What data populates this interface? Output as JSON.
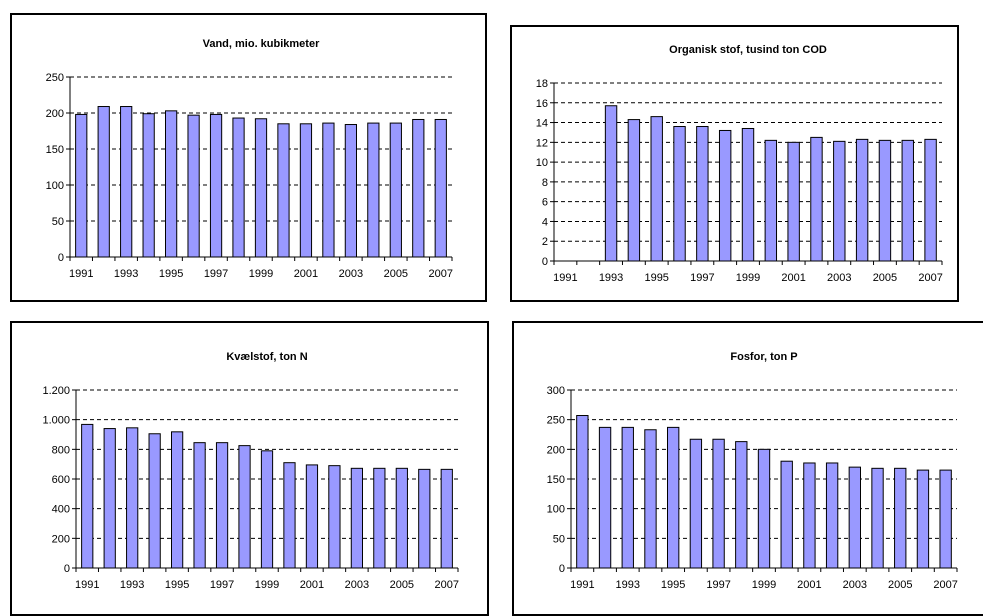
{
  "colors": {
    "bar_fill": "#9999ff",
    "bar_stroke": "#000000",
    "grid": "#000000",
    "background": "#ffffff"
  },
  "chart_data": [
    {
      "type": "bar",
      "title": "Vand, mio. kubikmeter",
      "categories": [
        "1991",
        "1992",
        "1993",
        "1994",
        "1995",
        "1996",
        "1997",
        "1998",
        "1999",
        "2000",
        "2001",
        "2002",
        "2003",
        "2004",
        "2005",
        "2006",
        "2007"
      ],
      "x_tick_labels": [
        "1991",
        "1993",
        "1995",
        "1997",
        "1999",
        "2001",
        "2003",
        "2005",
        "2007"
      ],
      "values": [
        198,
        209,
        209,
        199,
        203,
        197,
        198,
        193,
        192,
        185,
        185,
        186,
        184,
        186,
        186,
        191,
        191
      ],
      "ylim": [
        0,
        250
      ],
      "y_ticks": [
        0,
        50,
        100,
        150,
        200,
        250
      ],
      "y_tick_labels": [
        "0",
        "50",
        "100",
        "150",
        "200",
        "250"
      ],
      "grid": true,
      "grid_style": "dashed"
    },
    {
      "type": "bar",
      "title": "Organisk stof, tusind ton COD",
      "categories": [
        "1991",
        "1992",
        "1993",
        "1994",
        "1995",
        "1996",
        "1997",
        "1998",
        "1999",
        "2000",
        "2001",
        "2002",
        "2003",
        "2004",
        "2005",
        "2006",
        "2007"
      ],
      "x_tick_labels": [
        "1991",
        "1993",
        "1995",
        "1997",
        "1999",
        "2001",
        "2003",
        "2005",
        "2007"
      ],
      "values": [
        null,
        null,
        15.7,
        14.3,
        14.6,
        13.6,
        13.6,
        13.2,
        13.4,
        12.2,
        12.0,
        12.5,
        12.1,
        12.3,
        12.2,
        12.2,
        12.3
      ],
      "ylim": [
        0,
        18
      ],
      "y_ticks": [
        0,
        2,
        4,
        6,
        8,
        10,
        12,
        14,
        16,
        18
      ],
      "y_tick_labels": [
        "0",
        "2",
        "4",
        "6",
        "8",
        "10",
        "12",
        "14",
        "16",
        "18"
      ],
      "grid": true,
      "grid_style": "dashed"
    },
    {
      "type": "bar",
      "title": "Kvælstof, ton N",
      "categories": [
        "1991",
        "1992",
        "1993",
        "1994",
        "1995",
        "1996",
        "1997",
        "1998",
        "1999",
        "2000",
        "2001",
        "2002",
        "2003",
        "2004",
        "2005",
        "2006",
        "2007"
      ],
      "x_tick_labels": [
        "1991",
        "1993",
        "1995",
        "1997",
        "1999",
        "2001",
        "2003",
        "2005",
        "2007"
      ],
      "values": [
        968,
        940,
        945,
        905,
        918,
        845,
        845,
        825,
        790,
        710,
        695,
        690,
        672,
        672,
        672,
        665,
        665
      ],
      "ylim": [
        0,
        1200
      ],
      "y_ticks": [
        0,
        200,
        400,
        600,
        800,
        1000,
        1200
      ],
      "y_tick_labels": [
        "0",
        "200",
        "400",
        "600",
        "800",
        "1.000",
        "1.200"
      ],
      "grid": true,
      "grid_style": "dashed"
    },
    {
      "type": "bar",
      "title": "Fosfor, ton P",
      "categories": [
        "1991",
        "1992",
        "1993",
        "1994",
        "1995",
        "1996",
        "1997",
        "1998",
        "1999",
        "2000",
        "2001",
        "2002",
        "2003",
        "2004",
        "2005",
        "2006",
        "2007"
      ],
      "x_tick_labels": [
        "1991",
        "1993",
        "1995",
        "1997",
        "1999",
        "2001",
        "2003",
        "2005",
        "2007"
      ],
      "values": [
        257,
        237,
        237,
        233,
        237,
        217,
        217,
        213,
        200,
        180,
        177,
        177,
        170,
        168,
        168,
        165,
        165
      ],
      "ylim": [
        0,
        300
      ],
      "y_ticks": [
        0,
        50,
        100,
        150,
        200,
        250,
        300
      ],
      "y_tick_labels": [
        "0",
        "50",
        "100",
        "150",
        "200",
        "250",
        "300"
      ],
      "grid": true,
      "grid_style": "dashed"
    }
  ]
}
